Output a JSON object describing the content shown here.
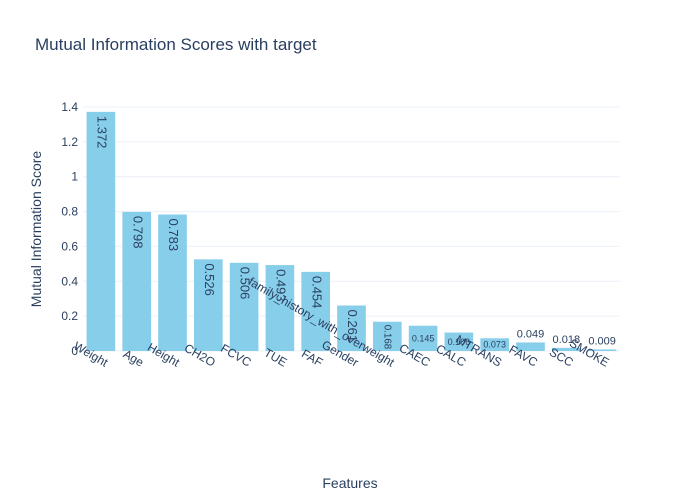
{
  "chart_data": {
    "type": "bar",
    "title": "Mutual Information Scores with target",
    "xlabel": "Features",
    "ylabel": "Mutual Information Score",
    "categories": [
      "Weight",
      "Age",
      "Height",
      "CH2O",
      "FCVC",
      "TUE",
      "FAF",
      "Gender",
      "family_history_with_overweight",
      "CAEC",
      "CALC",
      "MTRANS",
      "FAVC",
      "SCC",
      "SMOKE"
    ],
    "values": [
      1.372,
      0.798,
      0.783,
      0.526,
      0.506,
      0.493,
      0.454,
      0.261,
      0.168,
      0.145,
      0.106,
      0.073,
      0.049,
      0.018,
      0.009
    ],
    "data_labels": [
      "1.372",
      "0.798",
      "0.783",
      "0.526",
      "0.506",
      "0.493",
      "0.454",
      "0.261",
      "0.168",
      "0.145",
      "0.106",
      "0.073",
      "0.049",
      "0.018",
      "0.009"
    ],
    "ylim": [
      0,
      1.4
    ],
    "yticks": [
      0,
      0.2,
      0.4,
      0.6,
      0.8,
      1,
      1.2,
      1.4
    ],
    "ytick_labels": [
      "0",
      "0.2",
      "0.4",
      "0.6",
      "0.8",
      "1",
      "1.2",
      "1.4"
    ],
    "grid": true,
    "legend": "none",
    "bar_color": "#87ceeb",
    "grid_color": "#ebf0f8",
    "text_color": "#2a3f5f"
  }
}
